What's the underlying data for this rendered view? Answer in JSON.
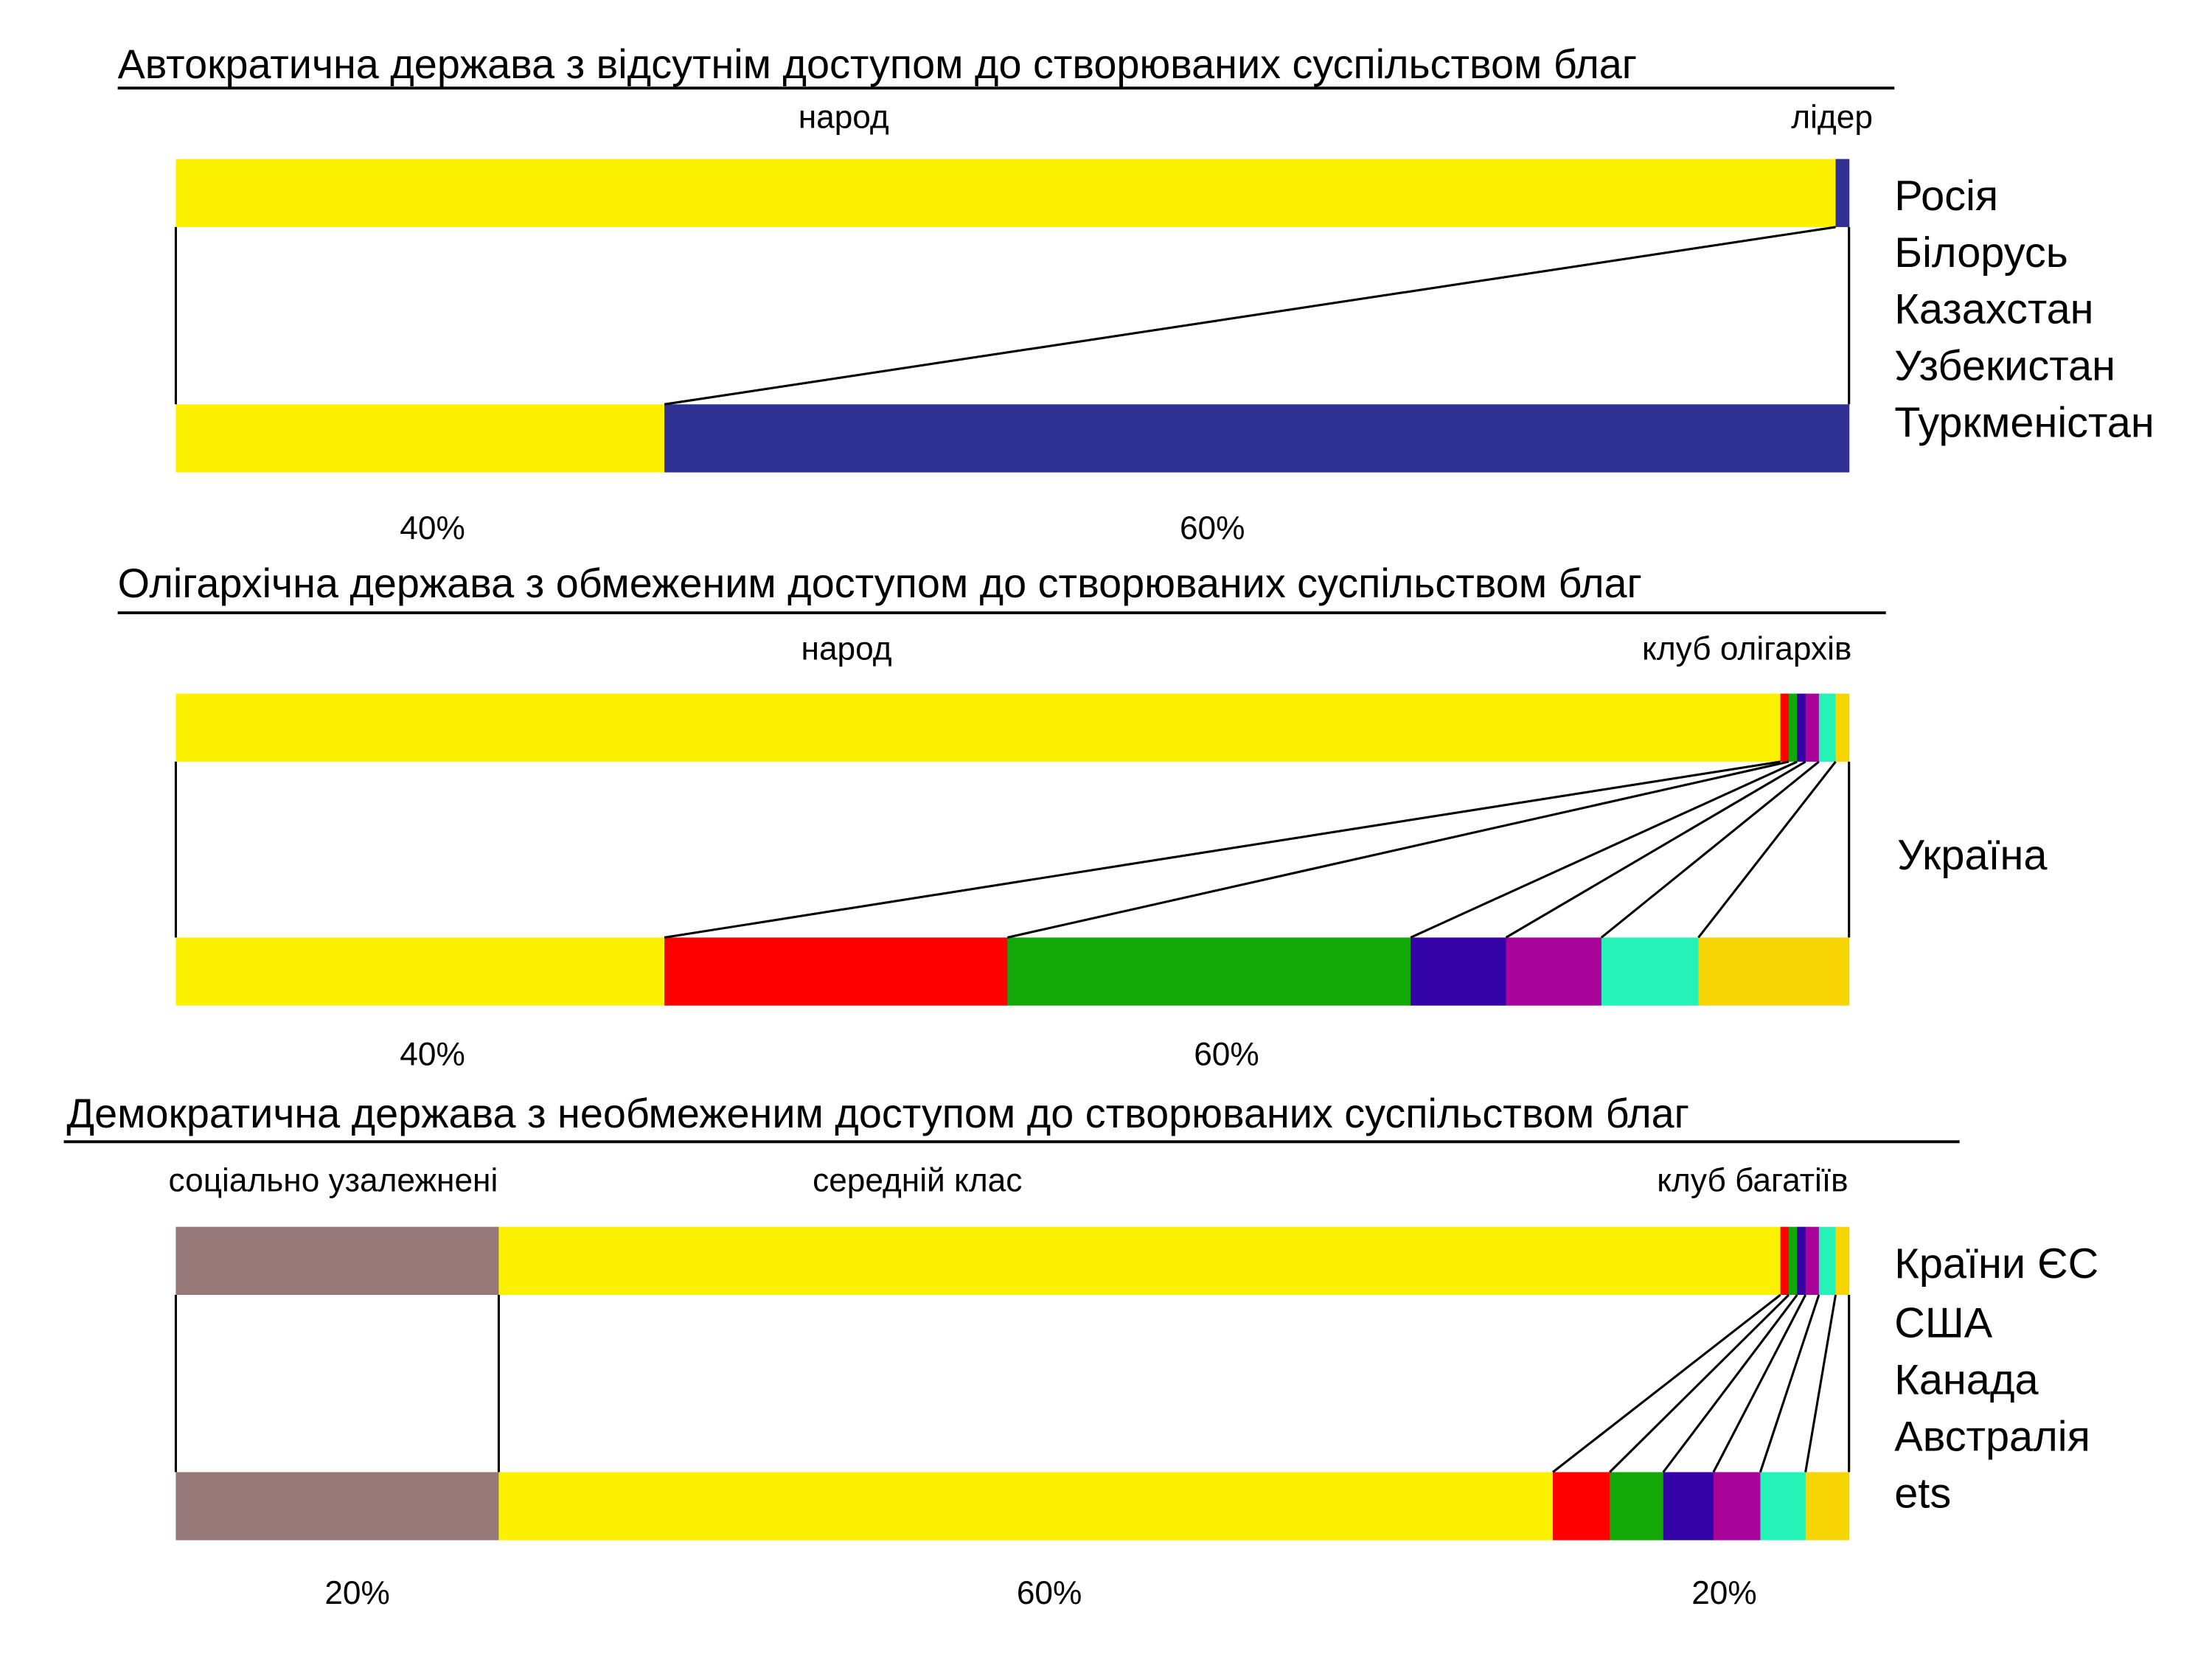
{
  "colors": {
    "people": "#FCF200",
    "leader": "#2E3192",
    "red": "#FF0000",
    "green": "#12A807",
    "blue": "#3404A8",
    "purple": "#A8049A",
    "cyan": "#24F2B6",
    "gold": "#F7D404",
    "dependent": "#967878"
  },
  "sections": [
    {
      "title": "Автократична держава з відсутнім доступом до створюваних суспільством благ",
      "labels": [
        "народ",
        "лідер"
      ],
      "percents": [
        "40%",
        "60%"
      ],
      "countries": [
        "Росія",
        "Білорусь",
        "Казахстан",
        "Узбекистан",
        "Туркменістан"
      ],
      "top": [
        {
          "share": 99.2,
          "color": "#FCF200"
        },
        {
          "share": 0.8,
          "color": "#2E3192"
        }
      ],
      "bottom": [
        {
          "share": 29.2,
          "color": "#FCF200"
        },
        {
          "share": 70.8,
          "color": "#2E3192"
        }
      ]
    },
    {
      "title": "Олігархічна держава з обмеженим доступом до створюваних суспільством благ",
      "labels": [
        "народ",
        "клуб олігархів"
      ],
      "percents": [
        "40%",
        "60%"
      ],
      "countries": [
        "Україна"
      ],
      "top": [
        {
          "share": 95.9,
          "color": "#FCF200"
        },
        {
          "share": 0.5,
          "color": "#FF0000"
        },
        {
          "share": 0.5,
          "color": "#12A807"
        },
        {
          "share": 0.5,
          "color": "#3404A8"
        },
        {
          "share": 0.8,
          "color": "#A8049A"
        },
        {
          "share": 1.0,
          "color": "#24F2B6"
        },
        {
          "share": 0.8,
          "color": "#F7D404"
        }
      ],
      "bottom": [
        {
          "share": 29.2,
          "color": "#FCF200"
        },
        {
          "share": 20.5,
          "color": "#FF0000"
        },
        {
          "share": 24.1,
          "color": "#12A807"
        },
        {
          "share": 5.7,
          "color": "#3404A8"
        },
        {
          "share": 5.7,
          "color": "#A8049A"
        },
        {
          "share": 5.8,
          "color": "#24F2B6"
        },
        {
          "share": 9.0,
          "color": "#F7D404"
        }
      ]
    },
    {
      "title": "Демократична держава з необмеженим доступом до створюваних суспільством благ",
      "labels": [
        "соціально узалежнені",
        "середній клас",
        "клуб багатіїв"
      ],
      "percents": [
        "20%",
        "60%",
        "20%"
      ],
      "countries": [
        "Країни ЄС",
        "США",
        "Канада",
        "Австралія",
        "ets"
      ],
      "top": [
        {
          "share": 19.3,
          "color": "#967878"
        },
        {
          "share": 76.6,
          "color": "#FCF200"
        },
        {
          "share": 0.5,
          "color": "#FF0000"
        },
        {
          "share": 0.5,
          "color": "#12A807"
        },
        {
          "share": 0.5,
          "color": "#3404A8"
        },
        {
          "share": 0.8,
          "color": "#A8049A"
        },
        {
          "share": 1.0,
          "color": "#24F2B6"
        },
        {
          "share": 0.8,
          "color": "#F7D404"
        }
      ],
      "bottom": [
        {
          "share": 19.3,
          "color": "#967878"
        },
        {
          "share": 63.0,
          "color": "#FCF200"
        },
        {
          "share": 3.4,
          "color": "#FF0000"
        },
        {
          "share": 3.2,
          "color": "#12A807"
        },
        {
          "share": 3.0,
          "color": "#3404A8"
        },
        {
          "share": 2.8,
          "color": "#A8049A"
        },
        {
          "share": 2.7,
          "color": "#24F2B6"
        },
        {
          "share": 2.6,
          "color": "#F7D404"
        }
      ]
    }
  ]
}
